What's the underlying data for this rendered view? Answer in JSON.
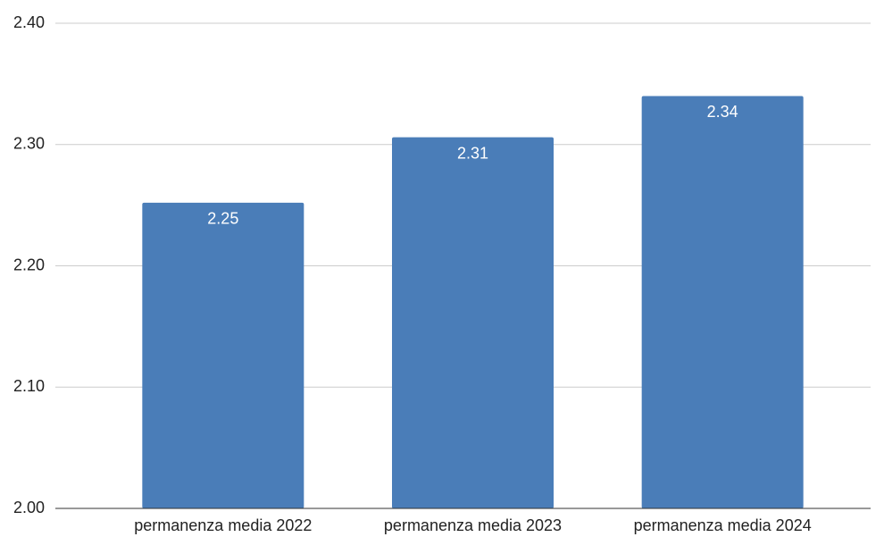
{
  "chart_data": {
    "type": "bar",
    "categories": [
      "permanenza media 2022",
      "permanenza media 2023",
      "permanenza media 2024"
    ],
    "values": [
      2.252,
      2.306,
      2.34
    ],
    "value_labels": [
      "2.25",
      "2.31",
      "2.34"
    ],
    "color": "#4a7db8",
    "ylim": [
      2,
      2.4
    ],
    "yticks": [
      {
        "value": 2,
        "label": "2.00"
      },
      {
        "value": 2.1,
        "label": "2.10"
      },
      {
        "value": 2.2,
        "label": "2.20"
      },
      {
        "value": 2.3,
        "label": "2.30"
      },
      {
        "value": 2.4,
        "label": "2.40"
      }
    ],
    "grid": true
  }
}
